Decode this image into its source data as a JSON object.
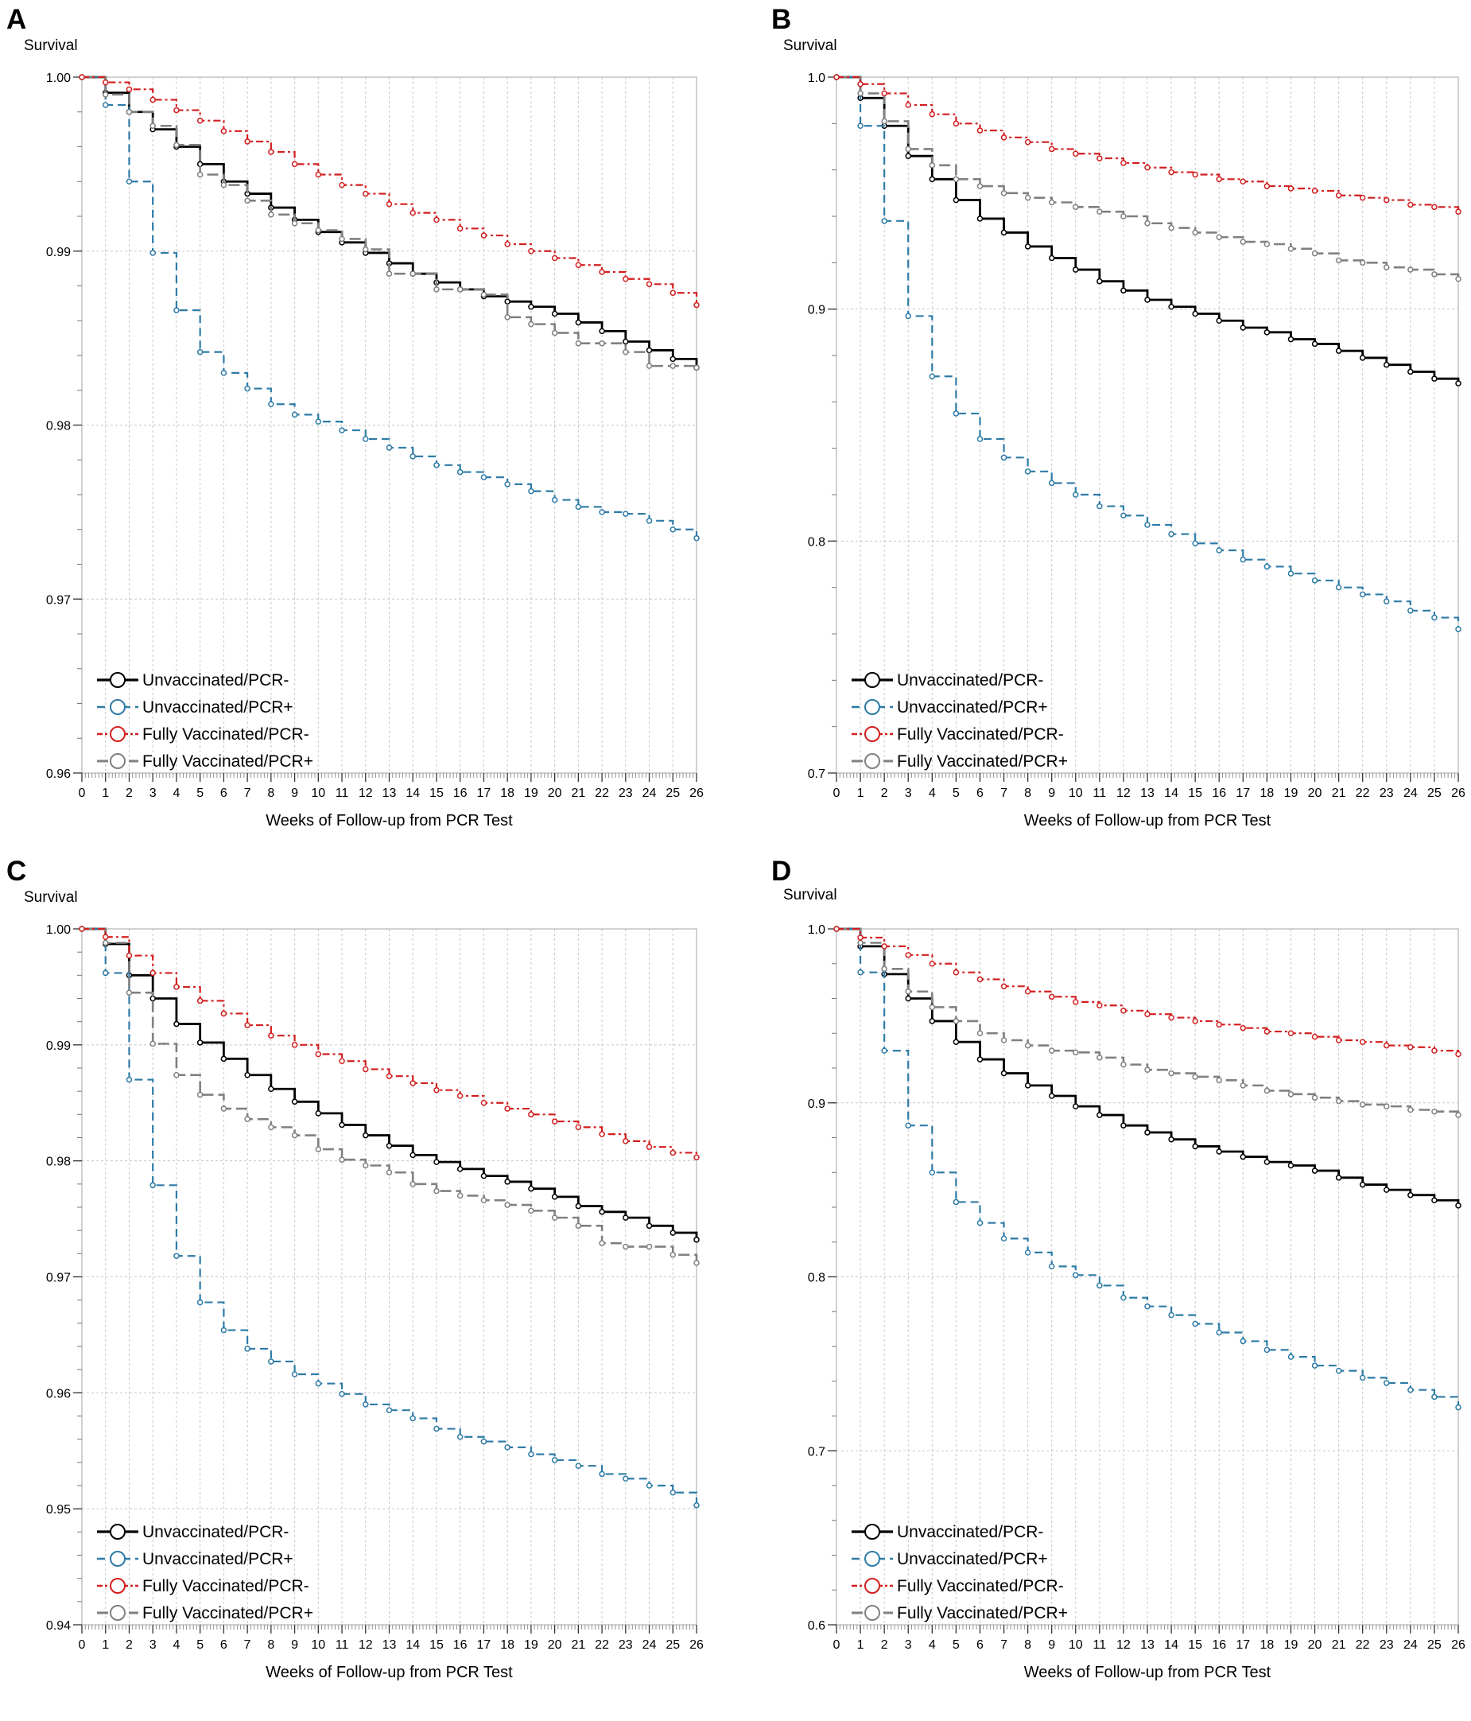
{
  "figure": {
    "panels": [
      "A",
      "B",
      "C",
      "D"
    ]
  },
  "chart_data": [
    {
      "panel": "A",
      "type": "line",
      "step": true,
      "ylabel": "Survival",
      "xlabel": "Weeks of Follow-up from PCR Test",
      "xlim": [
        0,
        26
      ],
      "ylim": [
        0.96,
        1.0
      ],
      "ytick_values": [
        0.96,
        0.97,
        0.98,
        0.99,
        1.0
      ],
      "ytick_labels": [
        "0.96",
        "0.97",
        "0.98",
        "0.99",
        "1.00"
      ],
      "x": [
        0,
        1,
        2,
        3,
        4,
        5,
        6,
        7,
        8,
        9,
        10,
        11,
        12,
        13,
        14,
        15,
        16,
        17,
        18,
        19,
        20,
        21,
        22,
        23,
        24,
        25,
        26
      ],
      "grid": true,
      "legend_position": "bottom-left",
      "series": [
        {
          "name": "Unvaccinated/PCR-",
          "color": "#000000",
          "dash": "solid",
          "values": [
            1.0,
            0.9991,
            0.998,
            0.997,
            0.996,
            0.995,
            0.994,
            0.9933,
            0.9925,
            0.9918,
            0.9911,
            0.9905,
            0.9899,
            0.9893,
            0.9887,
            0.9882,
            0.9878,
            0.9874,
            0.9871,
            0.9868,
            0.9864,
            0.9859,
            0.9854,
            0.9848,
            0.9843,
            0.9838,
            0.9833
          ]
        },
        {
          "name": "Unvaccinated/PCR+",
          "color": "#2e7ba6",
          "dash": "dashed",
          "values": [
            1.0,
            0.9984,
            0.994,
            0.9899,
            0.9866,
            0.9842,
            0.983,
            0.9821,
            0.9812,
            0.9806,
            0.9802,
            0.9797,
            0.9792,
            0.9787,
            0.9782,
            0.9777,
            0.9773,
            0.977,
            0.9766,
            0.9762,
            0.9757,
            0.9753,
            0.975,
            0.9749,
            0.9745,
            0.974,
            0.9735
          ]
        },
        {
          "name": "Fully Vaccinated/PCR-",
          "color": "#d21f1f",
          "dash": "dashdot",
          "values": [
            1.0,
            0.9997,
            0.9993,
            0.9987,
            0.9981,
            0.9975,
            0.9969,
            0.9963,
            0.9957,
            0.995,
            0.9944,
            0.9938,
            0.9933,
            0.9927,
            0.9922,
            0.9918,
            0.9913,
            0.9909,
            0.9904,
            0.99,
            0.9896,
            0.9892,
            0.9888,
            0.9884,
            0.9881,
            0.9876,
            0.9869
          ]
        },
        {
          "name": "Fully Vaccinated/PCR+",
          "color": "#808080",
          "dash": "longdash",
          "values": [
            1.0,
            0.999,
            0.998,
            0.9972,
            0.9961,
            0.9944,
            0.9938,
            0.9929,
            0.9921,
            0.9916,
            0.9912,
            0.9907,
            0.9901,
            0.9887,
            0.9887,
            0.9878,
            0.9878,
            0.9875,
            0.9862,
            0.9858,
            0.9853,
            0.9847,
            0.9847,
            0.9842,
            0.9834,
            0.9834,
            0.9833
          ]
        }
      ]
    },
    {
      "panel": "B",
      "type": "line",
      "step": true,
      "ylabel": "Survival",
      "xlabel": "Weeks of Follow-up from PCR Test",
      "xlim": [
        0,
        26
      ],
      "ylim": [
        0.7,
        1.0
      ],
      "ytick_values": [
        0.7,
        0.8,
        0.9,
        1.0
      ],
      "ytick_labels": [
        "0.7",
        "0.8",
        "0.9",
        "1.0"
      ],
      "x": [
        0,
        1,
        2,
        3,
        4,
        5,
        6,
        7,
        8,
        9,
        10,
        11,
        12,
        13,
        14,
        15,
        16,
        17,
        18,
        19,
        20,
        21,
        22,
        23,
        24,
        25,
        26
      ],
      "grid": true,
      "legend_position": "bottom-left",
      "series": [
        {
          "name": "Unvaccinated/PCR-",
          "color": "#000000",
          "dash": "solid",
          "values": [
            1.0,
            0.991,
            0.979,
            0.966,
            0.956,
            0.947,
            0.939,
            0.933,
            0.927,
            0.922,
            0.917,
            0.912,
            0.908,
            0.904,
            0.901,
            0.898,
            0.895,
            0.892,
            0.89,
            0.887,
            0.885,
            0.882,
            0.879,
            0.876,
            0.873,
            0.87,
            0.868
          ]
        },
        {
          "name": "Unvaccinated/PCR+",
          "color": "#2e7ba6",
          "dash": "dashed",
          "values": [
            1.0,
            0.979,
            0.938,
            0.897,
            0.871,
            0.855,
            0.844,
            0.836,
            0.83,
            0.825,
            0.82,
            0.815,
            0.811,
            0.807,
            0.803,
            0.799,
            0.796,
            0.792,
            0.789,
            0.786,
            0.783,
            0.78,
            0.777,
            0.774,
            0.77,
            0.767,
            0.762
          ]
        },
        {
          "name": "Fully Vaccinated/PCR-",
          "color": "#d21f1f",
          "dash": "dashdot",
          "values": [
            1.0,
            0.997,
            0.993,
            0.988,
            0.984,
            0.98,
            0.977,
            0.974,
            0.972,
            0.969,
            0.967,
            0.965,
            0.963,
            0.961,
            0.959,
            0.958,
            0.956,
            0.955,
            0.953,
            0.952,
            0.951,
            0.949,
            0.948,
            0.947,
            0.945,
            0.944,
            0.942
          ]
        },
        {
          "name": "Fully Vaccinated/PCR+",
          "color": "#808080",
          "dash": "longdash",
          "values": [
            1.0,
            0.993,
            0.981,
            0.969,
            0.962,
            0.956,
            0.953,
            0.95,
            0.948,
            0.946,
            0.944,
            0.942,
            0.94,
            0.937,
            0.935,
            0.933,
            0.931,
            0.929,
            0.928,
            0.926,
            0.924,
            0.921,
            0.92,
            0.918,
            0.917,
            0.915,
            0.913
          ]
        }
      ]
    },
    {
      "panel": "C",
      "type": "line",
      "step": true,
      "ylabel": "Survival",
      "xlabel": "Weeks of Follow-up from PCR Test",
      "xlim": [
        0,
        26
      ],
      "ylim": [
        0.94,
        1.0
      ],
      "ytick_values": [
        0.94,
        0.95,
        0.96,
        0.97,
        0.98,
        0.99,
        1.0
      ],
      "ytick_labels": [
        "0.94",
        "0.95",
        "0.96",
        "0.97",
        "0.98",
        "0.99",
        "1.00"
      ],
      "x": [
        0,
        1,
        2,
        3,
        4,
        5,
        6,
        7,
        8,
        9,
        10,
        11,
        12,
        13,
        14,
        15,
        16,
        17,
        18,
        19,
        20,
        21,
        22,
        23,
        24,
        25,
        26
      ],
      "grid": true,
      "legend_position": "bottom-left",
      "series": [
        {
          "name": "Unvaccinated/PCR-",
          "color": "#000000",
          "dash": "solid",
          "values": [
            1.0,
            0.9987,
            0.996,
            0.994,
            0.9918,
            0.9902,
            0.9888,
            0.9874,
            0.9862,
            0.9851,
            0.9841,
            0.9831,
            0.9822,
            0.9813,
            0.9805,
            0.9799,
            0.9793,
            0.9787,
            0.9782,
            0.9776,
            0.9769,
            0.9761,
            0.9756,
            0.9751,
            0.9744,
            0.9738,
            0.9732
          ]
        },
        {
          "name": "Unvaccinated/PCR+",
          "color": "#2e7ba6",
          "dash": "dashed",
          "values": [
            1.0,
            0.9962,
            0.987,
            0.9779,
            0.9718,
            0.9678,
            0.9654,
            0.9638,
            0.9627,
            0.9616,
            0.9608,
            0.9599,
            0.959,
            0.9585,
            0.9578,
            0.9569,
            0.9562,
            0.9558,
            0.9553,
            0.9547,
            0.9542,
            0.9537,
            0.953,
            0.9526,
            0.952,
            0.9514,
            0.9503
          ]
        },
        {
          "name": "Fully Vaccinated/PCR-",
          "color": "#d21f1f",
          "dash": "dashdot",
          "values": [
            1.0,
            0.9993,
            0.9977,
            0.9962,
            0.995,
            0.9938,
            0.9927,
            0.9917,
            0.9908,
            0.99,
            0.9892,
            0.9886,
            0.9879,
            0.9873,
            0.9867,
            0.9861,
            0.9856,
            0.985,
            0.9845,
            0.984,
            0.9834,
            0.9829,
            0.9823,
            0.9817,
            0.9812,
            0.9807,
            0.9803
          ]
        },
        {
          "name": "Fully Vaccinated/PCR+",
          "color": "#808080",
          "dash": "longdash",
          "values": [
            1.0,
            0.9988,
            0.9945,
            0.9901,
            0.9874,
            0.9857,
            0.9845,
            0.9836,
            0.9829,
            0.9822,
            0.981,
            0.9801,
            0.9796,
            0.979,
            0.978,
            0.9774,
            0.977,
            0.9766,
            0.9762,
            0.9757,
            0.9751,
            0.9744,
            0.9729,
            0.9726,
            0.9726,
            0.9719,
            0.9712
          ]
        }
      ]
    },
    {
      "panel": "D",
      "type": "line",
      "step": true,
      "ylabel": "Survival",
      "xlabel": "Weeks of Follow-up from PCR Test",
      "xlim": [
        0,
        26
      ],
      "ylim": [
        0.6,
        1.0
      ],
      "ytick_values": [
        0.6,
        0.7,
        0.8,
        0.9,
        1.0
      ],
      "ytick_labels": [
        "0.6",
        "0.7",
        "0.8",
        "0.9",
        "1.0"
      ],
      "x": [
        0,
        1,
        2,
        3,
        4,
        5,
        6,
        7,
        8,
        9,
        10,
        11,
        12,
        13,
        14,
        15,
        16,
        17,
        18,
        19,
        20,
        21,
        22,
        23,
        24,
        25,
        26
      ],
      "grid": true,
      "legend_position": "bottom-left",
      "series": [
        {
          "name": "Unvaccinated/PCR-",
          "color": "#000000",
          "dash": "solid",
          "values": [
            1.0,
            0.99,
            0.974,
            0.96,
            0.947,
            0.935,
            0.925,
            0.917,
            0.91,
            0.904,
            0.898,
            0.893,
            0.887,
            0.883,
            0.879,
            0.875,
            0.872,
            0.869,
            0.866,
            0.864,
            0.861,
            0.857,
            0.853,
            0.85,
            0.847,
            0.844,
            0.841
          ]
        },
        {
          "name": "Unvaccinated/PCR+",
          "color": "#2e7ba6",
          "dash": "dashed",
          "values": [
            1.0,
            0.975,
            0.93,
            0.887,
            0.86,
            0.843,
            0.831,
            0.822,
            0.814,
            0.806,
            0.801,
            0.795,
            0.788,
            0.783,
            0.778,
            0.773,
            0.768,
            0.763,
            0.758,
            0.754,
            0.749,
            0.746,
            0.742,
            0.739,
            0.735,
            0.731,
            0.725
          ]
        },
        {
          "name": "Fully Vaccinated/PCR-",
          "color": "#d21f1f",
          "dash": "dashdot",
          "values": [
            1.0,
            0.995,
            0.99,
            0.985,
            0.98,
            0.975,
            0.971,
            0.967,
            0.964,
            0.961,
            0.958,
            0.956,
            0.953,
            0.951,
            0.949,
            0.947,
            0.945,
            0.943,
            0.941,
            0.94,
            0.938,
            0.936,
            0.935,
            0.933,
            0.932,
            0.93,
            0.928
          ]
        },
        {
          "name": "Fully Vaccinated/PCR+",
          "color": "#808080",
          "dash": "longdash",
          "values": [
            1.0,
            0.992,
            0.977,
            0.964,
            0.955,
            0.947,
            0.94,
            0.936,
            0.933,
            0.93,
            0.929,
            0.926,
            0.922,
            0.919,
            0.917,
            0.915,
            0.913,
            0.91,
            0.907,
            0.905,
            0.903,
            0.901,
            0.899,
            0.898,
            0.896,
            0.895,
            0.893
          ]
        }
      ]
    }
  ]
}
